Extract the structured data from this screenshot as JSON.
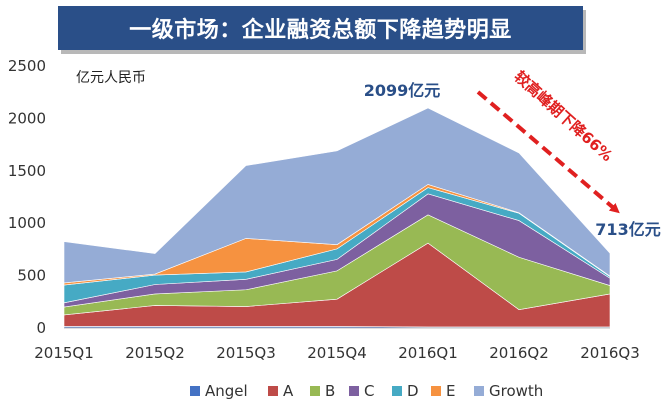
{
  "title": "一级市场：企业融资总额下降趋势明显",
  "chart_data": {
    "type": "area",
    "stacked": true,
    "unit_label": "亿元人民币",
    "categories": [
      "2015Q1",
      "2015Q2",
      "2015Q3",
      "2015Q4",
      "2016Q1",
      "2016Q2",
      "2016Q3"
    ],
    "ylim": [
      0,
      2500
    ],
    "yticks": [
      0,
      500,
      1000,
      1500,
      2000,
      2500
    ],
    "series": [
      {
        "name": "Angel",
        "color": "#4472c4",
        "values": [
          15,
          15,
          15,
          15,
          10,
          10,
          10
        ]
      },
      {
        "name": "A",
        "color": "#be4b48",
        "values": [
          110,
          200,
          190,
          260,
          800,
          165,
          315
        ]
      },
      {
        "name": "B",
        "color": "#98b954",
        "values": [
          75,
          110,
          160,
          270,
          270,
          500,
          80
        ]
      },
      {
        "name": "C",
        "color": "#7d60a0",
        "values": [
          40,
          90,
          100,
          110,
          200,
          350,
          70
        ]
      },
      {
        "name": "D",
        "color": "#46aac4",
        "values": [
          170,
          90,
          70,
          100,
          60,
          70,
          15
        ]
      },
      {
        "name": "E",
        "color": "#f69240",
        "values": [
          20,
          10,
          320,
          40,
          30,
          5,
          5
        ]
      },
      {
        "name": "Growth",
        "color": "#95acd6",
        "values": [
          395,
          195,
          695,
          895,
          729,
          570,
          218
        ]
      }
    ],
    "annotations": {
      "peak_value": "2099亿元",
      "last_value": "713亿元",
      "decline_text": "较高峰期下降66%"
    }
  }
}
